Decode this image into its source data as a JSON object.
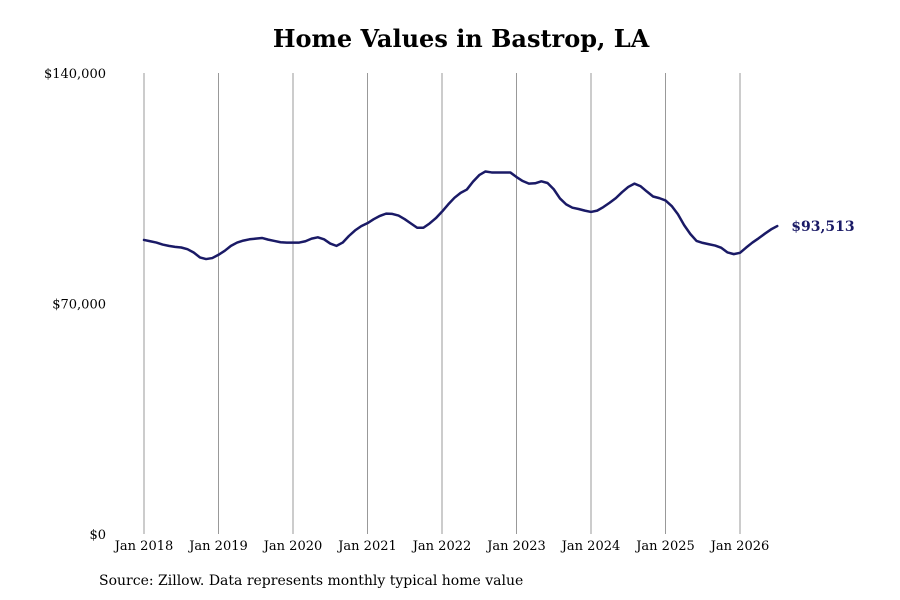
{
  "title": "Home Values in Bastrop, LA",
  "source": "Source: Zillow. Data represents monthly typical home value",
  "colors": {
    "line": "#1a1a66",
    "grid": "#999999"
  },
  "chart_data": {
    "type": "line",
    "title": "Home Values in Bastrop, LA",
    "xlabel": "",
    "ylabel": "",
    "ylim": [
      0,
      140000
    ],
    "xlim": [
      "2018-01",
      "2026-07"
    ],
    "y_ticks": [
      {
        "value": 0,
        "label": "$0"
      },
      {
        "value": 70000,
        "label": "$70,000"
      },
      {
        "value": 140000,
        "label": "$140,000"
      }
    ],
    "x_ticks": [
      {
        "date": "2018-01",
        "label": "Jan 2018"
      },
      {
        "date": "2019-01",
        "label": "Jan 2019"
      },
      {
        "date": "2020-01",
        "label": "Jan 2020"
      },
      {
        "date": "2021-01",
        "label": "Jan 2021"
      },
      {
        "date": "2022-01",
        "label": "Jan 2022"
      },
      {
        "date": "2023-01",
        "label": "Jan 2023"
      },
      {
        "date": "2024-01",
        "label": "Jan 2024"
      },
      {
        "date": "2025-01",
        "label": "Jan 2025"
      },
      {
        "date": "2026-01",
        "label": "Jan 2026"
      }
    ],
    "grid": "vertical at x ticks",
    "end_label": "$93,513",
    "series": [
      {
        "points": [
          [
            "2018-01",
            89300
          ],
          [
            "2018-02",
            88900
          ],
          [
            "2018-03",
            88500
          ],
          [
            "2018-04",
            87900
          ],
          [
            "2018-05",
            87500
          ],
          [
            "2018-06",
            87200
          ],
          [
            "2018-07",
            87000
          ],
          [
            "2018-08",
            86500
          ],
          [
            "2018-09",
            85500
          ],
          [
            "2018-10",
            84000
          ],
          [
            "2018-11",
            83500
          ],
          [
            "2018-12",
            83800
          ],
          [
            "2019-01",
            84800
          ],
          [
            "2019-02",
            86000
          ],
          [
            "2019-03",
            87500
          ],
          [
            "2019-04",
            88500
          ],
          [
            "2019-05",
            89100
          ],
          [
            "2019-06",
            89500
          ],
          [
            "2019-07",
            89700
          ],
          [
            "2019-08",
            89900
          ],
          [
            "2019-09",
            89400
          ],
          [
            "2019-10",
            89000
          ],
          [
            "2019-11",
            88600
          ],
          [
            "2019-12",
            88500
          ],
          [
            "2020-01",
            88500
          ],
          [
            "2020-02",
            88500
          ],
          [
            "2020-03",
            88900
          ],
          [
            "2020-04",
            89700
          ],
          [
            "2020-05",
            90100
          ],
          [
            "2020-06",
            89500
          ],
          [
            "2020-07",
            88200
          ],
          [
            "2020-08",
            87500
          ],
          [
            "2020-09",
            88500
          ],
          [
            "2020-10",
            90500
          ],
          [
            "2020-11",
            92200
          ],
          [
            "2020-12",
            93500
          ],
          [
            "2021-01",
            94400
          ],
          [
            "2021-02",
            95600
          ],
          [
            "2021-03",
            96600
          ],
          [
            "2021-04",
            97300
          ],
          [
            "2021-05",
            97200
          ],
          [
            "2021-06",
            96700
          ],
          [
            "2021-07",
            95600
          ],
          [
            "2021-08",
            94300
          ],
          [
            "2021-09",
            93000
          ],
          [
            "2021-10",
            93000
          ],
          [
            "2021-11",
            94300
          ],
          [
            "2021-12",
            95900
          ],
          [
            "2022-01",
            97900
          ],
          [
            "2022-02",
            100100
          ],
          [
            "2022-03",
            102100
          ],
          [
            "2022-04",
            103600
          ],
          [
            "2022-05",
            104600
          ],
          [
            "2022-06",
            107000
          ],
          [
            "2022-07",
            109000
          ],
          [
            "2022-08",
            110100
          ],
          [
            "2022-09",
            109800
          ],
          [
            "2022-10",
            109800
          ],
          [
            "2022-11",
            109800
          ],
          [
            "2022-12",
            109800
          ],
          [
            "2023-01",
            108400
          ],
          [
            "2023-02",
            107200
          ],
          [
            "2023-03",
            106400
          ],
          [
            "2023-04",
            106500
          ],
          [
            "2023-05",
            107100
          ],
          [
            "2023-06",
            106600
          ],
          [
            "2023-07",
            104700
          ],
          [
            "2023-08",
            101900
          ],
          [
            "2023-09",
            100100
          ],
          [
            "2023-10",
            99100
          ],
          [
            "2023-11",
            98700
          ],
          [
            "2023-12",
            98200
          ],
          [
            "2024-01",
            97800
          ],
          [
            "2024-02",
            98200
          ],
          [
            "2024-03",
            99300
          ],
          [
            "2024-04",
            100600
          ],
          [
            "2024-05",
            102000
          ],
          [
            "2024-06",
            103800
          ],
          [
            "2024-07",
            105400
          ],
          [
            "2024-08",
            106400
          ],
          [
            "2024-09",
            105600
          ],
          [
            "2024-10",
            104000
          ],
          [
            "2024-11",
            102500
          ],
          [
            "2024-12",
            102000
          ],
          [
            "2025-01",
            101300
          ],
          [
            "2025-02",
            99600
          ],
          [
            "2025-03",
            97100
          ],
          [
            "2025-04",
            93800
          ],
          [
            "2025-05",
            91100
          ],
          [
            "2025-06",
            89000
          ],
          [
            "2025-07",
            88400
          ],
          [
            "2025-08",
            88000
          ],
          [
            "2025-09",
            87600
          ],
          [
            "2025-10",
            86900
          ],
          [
            "2025-11",
            85500
          ],
          [
            "2025-12",
            85000
          ],
          [
            "2026-01",
            85400
          ],
          [
            "2026-02",
            87000
          ],
          [
            "2026-03",
            88500
          ],
          [
            "2026-04",
            89800
          ],
          [
            "2026-05",
            91200
          ],
          [
            "2026-06",
            92500
          ],
          [
            "2026-07",
            93513
          ]
        ]
      }
    ]
  }
}
